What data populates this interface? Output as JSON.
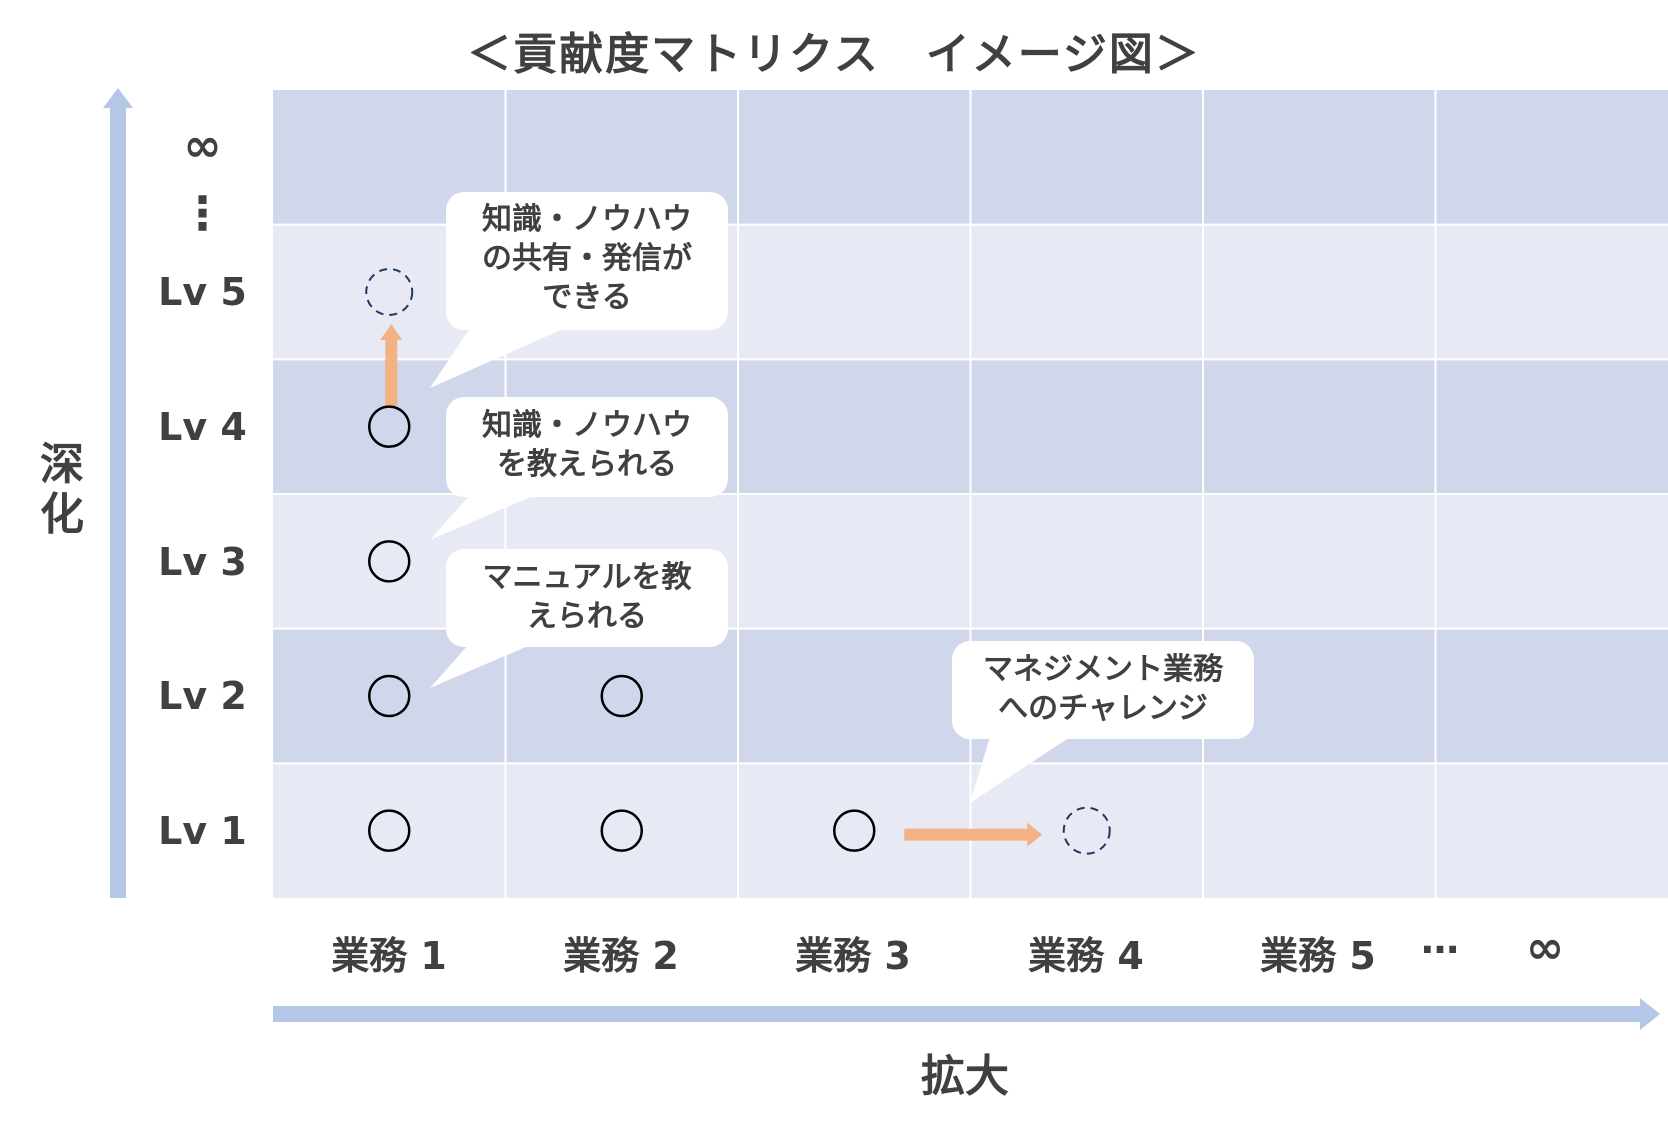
{
  "title": "＜貢献度マトリクス　イメージ図＞",
  "axes": {
    "y_label": "深化",
    "x_label": "拡大",
    "y_top_label": "∞",
    "y_ellipsis": "⋮",
    "x_ellipsis": "…",
    "x_end_label": "∞"
  },
  "rows": [
    {
      "label": "Lv 5"
    },
    {
      "label": "Lv 4"
    },
    {
      "label": "Lv 3"
    },
    {
      "label": "Lv 2"
    },
    {
      "label": "Lv 1"
    }
  ],
  "columns": [
    {
      "label": "業務 1"
    },
    {
      "label": "業務 2"
    },
    {
      "label": "業務 3"
    },
    {
      "label": "業務 4"
    },
    {
      "label": "業務 5"
    }
  ],
  "markers": [
    {
      "col": 1,
      "row": 1,
      "style": "solid"
    },
    {
      "col": 1,
      "row": 2,
      "style": "solid"
    },
    {
      "col": 1,
      "row": 3,
      "style": "solid"
    },
    {
      "col": 1,
      "row": 4,
      "style": "solid"
    },
    {
      "col": 1,
      "row": 5,
      "style": "dashed"
    },
    {
      "col": 2,
      "row": 1,
      "style": "solid"
    },
    {
      "col": 2,
      "row": 2,
      "style": "solid"
    },
    {
      "col": 3,
      "row": 1,
      "style": "solid"
    },
    {
      "col": 4,
      "row": 1,
      "style": "dashed"
    }
  ],
  "callouts": [
    {
      "text": "知識・ノウハウ\nの共有・発信が\nできる"
    },
    {
      "text": "知識・ノウハウ\nを教えられる"
    },
    {
      "text": "マニュアルを教\nえられる"
    },
    {
      "text": "マネジメント業務\nへのチャレンジ"
    }
  ],
  "colors": {
    "band_dark": "#d0d7eb",
    "band_light": "#e7eaf5",
    "axis_arrow": "#b4c7e7",
    "progress_arrow": "#f4b183",
    "marker_solid": "#000000",
    "marker_dashed": "#1f3864",
    "text": "#404040"
  }
}
